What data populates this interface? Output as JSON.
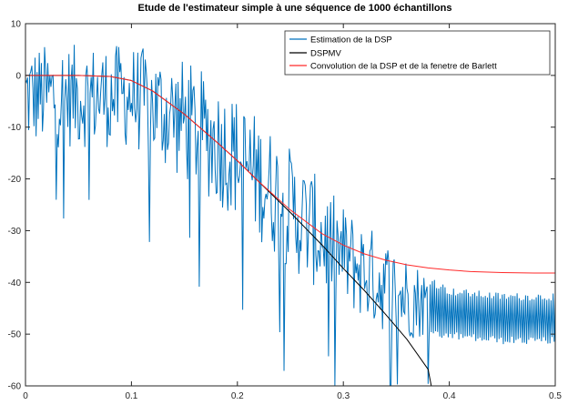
{
  "chart_data": {
    "type": "line",
    "title": "Etude de l'estimateur simple à une séquence de 1000 échantillons",
    "xlabel": "",
    "ylabel": "",
    "xlim": [
      0,
      0.5
    ],
    "ylim": [
      -60,
      10
    ],
    "xticks": [
      "0",
      "0.1",
      "0.2",
      "0.3",
      "0.4",
      "0.5"
    ],
    "yticks": [
      "10",
      "0",
      "-10",
      "-20",
      "-30",
      "-40",
      "-50",
      "-60"
    ],
    "grid": false,
    "legend_position": "top-right",
    "series": [
      {
        "name": "Estimation de la DSP",
        "color": "#0072bd",
        "description_points": {
          "x": [
            0,
            0.05,
            0.1,
            0.15,
            0.2,
            0.25,
            0.3,
            0.35,
            0.4,
            0.45,
            0.5
          ],
          "center": [
            -5,
            -5,
            -5,
            -10,
            -17,
            -27,
            -36,
            -43,
            -46,
            -47,
            -47
          ],
          "amplitude": [
            10,
            10,
            10,
            12,
            12,
            12,
            10,
            9,
            5,
            5,
            5
          ]
        }
      },
      {
        "name": "DSPMV",
        "color": "#000000",
        "x": [
          0,
          0.05,
          0.08,
          0.1,
          0.12,
          0.15,
          0.18,
          0.2,
          0.22,
          0.25,
          0.28,
          0.3,
          0.32,
          0.34,
          0.36,
          0.38,
          0.383
        ],
        "y": [
          0,
          0,
          -0.2,
          -1,
          -3,
          -7.5,
          -12.8,
          -16.5,
          -20.5,
          -26.5,
          -32.8,
          -37.3,
          -41.6,
          -46.2,
          -51,
          -56.8,
          -60
        ]
      },
      {
        "name": "Convolution de la DSP et de la fenetre de Barlett",
        "color": "#ff2a2a",
        "x": [
          0,
          0.05,
          0.08,
          0.1,
          0.12,
          0.15,
          0.18,
          0.2,
          0.22,
          0.25,
          0.28,
          0.3,
          0.32,
          0.34,
          0.36,
          0.38,
          0.4,
          0.42,
          0.45,
          0.48,
          0.5
        ],
        "y": [
          0,
          0,
          -0.2,
          -1,
          -3,
          -7.5,
          -12.8,
          -16.5,
          -20.5,
          -26,
          -30.6,
          -32.8,
          -34.5,
          -35.7,
          -36.6,
          -37.2,
          -37.6,
          -37.9,
          -38.1,
          -38.2,
          -38.2
        ]
      }
    ]
  }
}
